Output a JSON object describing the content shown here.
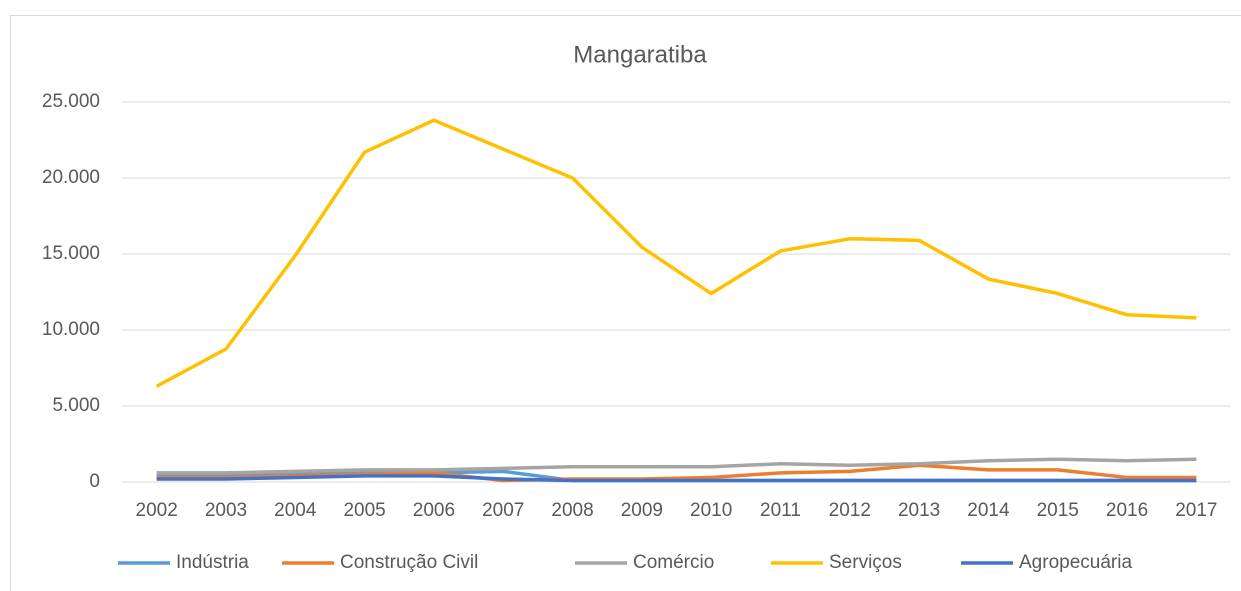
{
  "chart_data": {
    "type": "line",
    "title": "Mangaratiba",
    "categories": [
      "2002",
      "2003",
      "2004",
      "2005",
      "2006",
      "2007",
      "2008",
      "2009",
      "2010",
      "2011",
      "2012",
      "2013",
      "2014",
      "2015",
      "2016",
      "2017"
    ],
    "series": [
      {
        "name": "Indústria",
        "color": "#5b9bd5",
        "values": [
          400,
          400,
          500,
          600,
          600,
          700,
          100,
          100,
          100,
          100,
          100,
          100,
          100,
          100,
          100,
          100
        ]
      },
      {
        "name": "Construção Civil",
        "color": "#ed7d31",
        "values": [
          300,
          300,
          400,
          500,
          600,
          100,
          200,
          200,
          300,
          600,
          700,
          1100,
          800,
          800,
          300,
          300
        ]
      },
      {
        "name": "Comércio",
        "color": "#a5a5a5",
        "values": [
          600,
          600,
          700,
          800,
          800,
          900,
          1000,
          1000,
          1000,
          1200,
          1100,
          1200,
          1400,
          1500,
          1400,
          1500
        ]
      },
      {
        "name": "Serviços",
        "color": "#ffc000",
        "values": [
          6300,
          8750,
          14900,
          21700,
          23800,
          21900,
          20000,
          15450,
          12400,
          15200,
          16000,
          15900,
          13350,
          12400,
          11000,
          10800
        ]
      },
      {
        "name": "Agropecuária",
        "color": "#4472c4",
        "values": [
          200,
          200,
          300,
          400,
          400,
          200,
          100,
          100,
          100,
          100,
          100,
          100,
          100,
          100,
          100,
          100
        ]
      }
    ],
    "ylim": [
      0,
      25000
    ],
    "yticks": [
      0,
      {
        "value": 5000,
        "label": "5.000"
      },
      {
        "value": 10000,
        "label": "10.000"
      },
      {
        "value": 15000,
        "label": "15.000"
      },
      {
        "value": 20000,
        "label": "20.000"
      },
      {
        "value": 25000,
        "label": "25.000"
      }
    ],
    "grid": true,
    "legend": "bottom"
  }
}
